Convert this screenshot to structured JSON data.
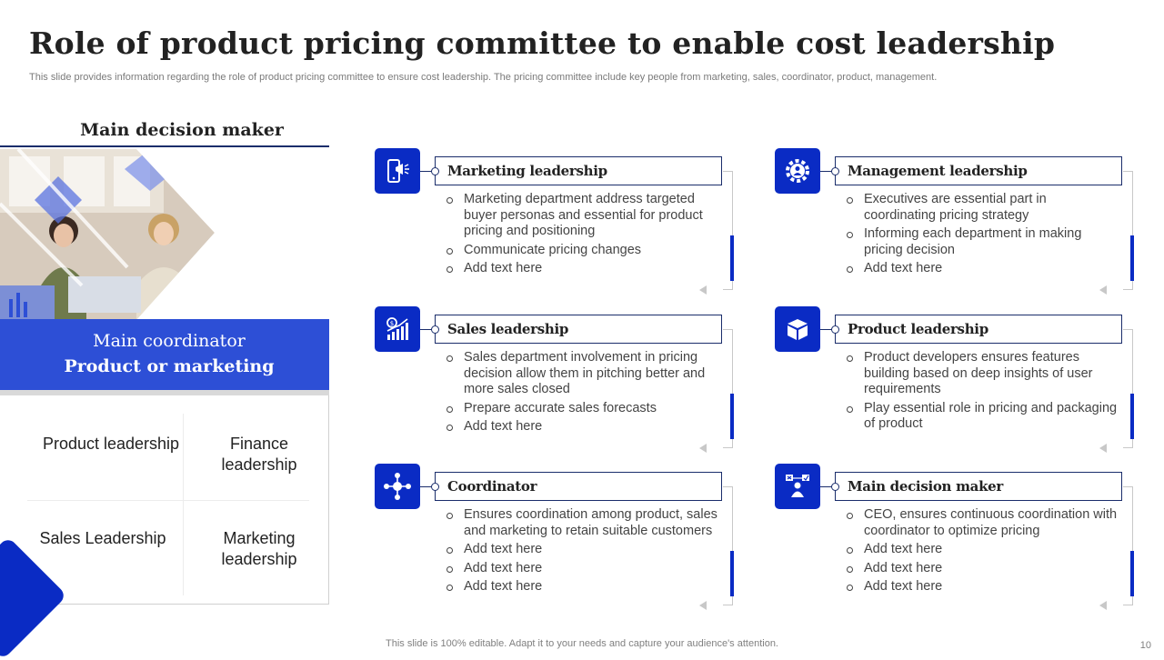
{
  "slide": {
    "title": "Role of product pricing committee to enable cost leadership",
    "subtitle": "This slide provides information regarding the role of product pricing committee to ensure cost leadership. The pricing committee include key people from marketing, sales, coordinator, product, management.",
    "footer": "This slide is 100% editable. Adapt it to your needs and capture your audience's attention.",
    "page_number": "10"
  },
  "left_panel": {
    "heading": "Main decision maker",
    "coordinator_label": "Main coordinator",
    "coordinator_value": "Product or marketing",
    "grid": [
      "Product leadership",
      "Finance leadership",
      "Sales Leadership",
      "Marketing leadership"
    ],
    "accent_color": "#2d4fd6"
  },
  "blocks": [
    {
      "title": "Marketing leadership",
      "icon": "megaphone-phone-icon",
      "bullets": [
        "Marketing department address targeted buyer personas and essential for product pricing and positioning",
        "Communicate pricing changes",
        "Add text here"
      ]
    },
    {
      "title": "Management leadership",
      "icon": "gear-person-icon",
      "bullets": [
        "Executives are essential part in coordinating pricing strategy",
        "Informing each department in making pricing decision",
        "Add text here"
      ]
    },
    {
      "title": "Sales leadership",
      "icon": "sales-growth-chart-icon",
      "bullets": [
        "Sales department involvement in pricing decision allow them in pitching better and more sales closed",
        "Prepare accurate sales forecasts",
        "Add text here"
      ]
    },
    {
      "title": "Product leadership",
      "icon": "product-box-icon",
      "bullets": [
        "Product developers ensures features building based on deep insights of user requirements",
        "Play essential role in pricing and packaging of product"
      ]
    },
    {
      "title": "Coordinator",
      "icon": "network-hub-icon",
      "bullets": [
        "Ensures coordination among product, sales and marketing to retain suitable customers",
        "Add text here",
        "Add text here",
        "Add text here"
      ]
    },
    {
      "title": "Main decision maker",
      "icon": "decision-maker-icon",
      "bullets": [
        "CEO, ensures continuous coordination with coordinator to optimize pricing",
        "Add text here",
        "Add text here",
        "Add text here"
      ]
    }
  ],
  "colors": {
    "brand_blue": "#0a2bc4",
    "outline": "#1a2d6b"
  }
}
